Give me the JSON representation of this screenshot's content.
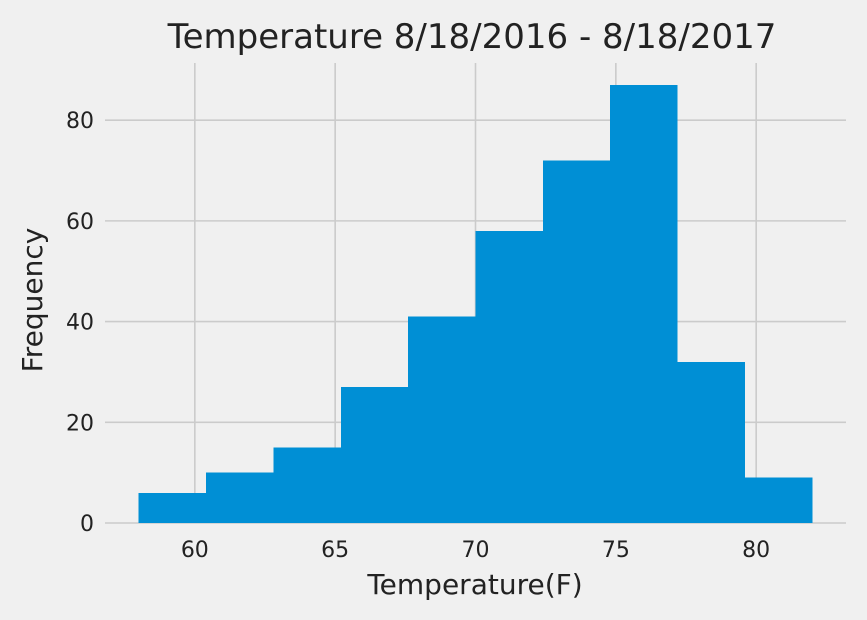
{
  "chart_data": {
    "type": "bar",
    "title": "Temperature 8/18/2016 - 8/18/2017",
    "xlabel": "Temperature(F)",
    "ylabel": "Frequency",
    "bin_edges": [
      58.0,
      60.4,
      62.8,
      65.2,
      67.6,
      70.0,
      72.4,
      74.8,
      77.2,
      79.6,
      82.0
    ],
    "values": [
      6,
      10,
      15,
      27,
      41,
      58,
      72,
      87,
      32,
      9
    ],
    "xlim": [
      56.8,
      83.2
    ],
    "ylim": [
      0,
      91.35
    ],
    "xticks": [
      60,
      65,
      70,
      75,
      80
    ],
    "yticks": [
      0,
      20,
      40,
      60,
      80
    ],
    "grid": true,
    "colors": {
      "bar": "#008fd5",
      "background": "#f0f0f0",
      "grid": "#cbcbcb",
      "text": "#222222"
    }
  }
}
